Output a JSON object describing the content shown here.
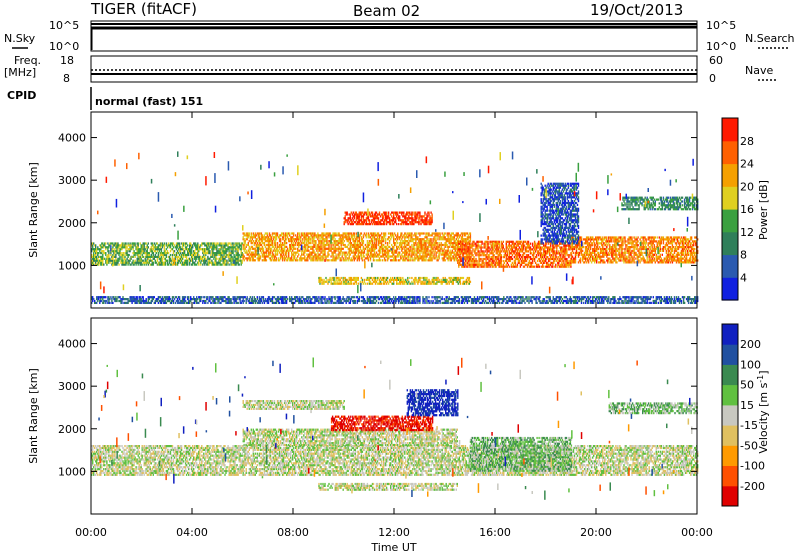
{
  "header": {
    "station": "TIGER (fitACF)",
    "beam": "Beam 02",
    "date": "19/Oct/2013"
  },
  "panels": {
    "nsky": {
      "label": "N.Sky",
      "ticks_left": [
        "10^5",
        "10^0"
      ],
      "right_label": "N.Search",
      "ticks_right": [
        "10^5",
        "10^0"
      ]
    },
    "freq": {
      "label": "Freq.",
      "unit": "[MHz]",
      "ticks_left": [
        "18",
        "8"
      ],
      "right_label": "Nave",
      "ticks_right": [
        "60",
        "0"
      ]
    },
    "cpid": {
      "label": "CPID",
      "value": "normal (fast) 151"
    }
  },
  "chart_data": [
    {
      "type": "heatmap",
      "name": "power",
      "title": "",
      "xlabel": "Time UT",
      "ylabel": "Slant Range [km]",
      "x_ticks": [
        "00:00",
        "04:00",
        "08:00",
        "12:00",
        "16:00",
        "20:00",
        "00:00"
      ],
      "y_ticks": [
        1000,
        2000,
        3000,
        4000
      ],
      "ylim": [
        0,
        4600
      ],
      "xlim_hours": [
        0,
        24
      ],
      "colorbar": {
        "label": "Power [dB]",
        "ticks": [
          4,
          8,
          12,
          16,
          20,
          24,
          28
        ],
        "range": [
          0,
          32
        ],
        "colors": [
          "#1020e0",
          "#2a5ab0",
          "#2f7f5a",
          "#3aa040",
          "#e0d020",
          "#f5a000",
          "#ff6000",
          "#ff1a00"
        ]
      },
      "bands": [
        {
          "t0": 0.0,
          "t1": 6.0,
          "r0": 1000,
          "r1": 1500,
          "level": 0.45
        },
        {
          "t0": 6.0,
          "t1": 15.0,
          "r0": 1100,
          "r1": 1750,
          "level": 0.7
        },
        {
          "t0": 10.0,
          "t1": 13.5,
          "r0": 1950,
          "r1": 2250,
          "level": 0.9
        },
        {
          "t0": 14.5,
          "t1": 19.0,
          "r0": 950,
          "r1": 1550,
          "level": 0.8
        },
        {
          "t0": 19.0,
          "t1": 24.0,
          "r0": 1050,
          "r1": 1650,
          "level": 0.75
        },
        {
          "t0": 9.0,
          "t1": 15.0,
          "r0": 550,
          "r1": 700,
          "level": 0.6
        },
        {
          "t0": 21.0,
          "t1": 24.0,
          "r0": 2300,
          "r1": 2600,
          "level": 0.35
        },
        {
          "t0": 17.8,
          "t1": 19.3,
          "r0": 1500,
          "r1": 2900,
          "level": 0.15
        },
        {
          "t0": 0.0,
          "t1": 24.0,
          "r0": 100,
          "r1": 260,
          "level": 0.2
        }
      ]
    },
    {
      "type": "heatmap",
      "name": "velocity",
      "title": "",
      "xlabel": "Time UT",
      "ylabel": "Slant Range [km]",
      "x_ticks": [
        "00:00",
        "04:00",
        "08:00",
        "12:00",
        "16:00",
        "20:00",
        "00:00"
      ],
      "y_ticks": [
        1000,
        2000,
        3000,
        4000
      ],
      "ylim": [
        0,
        4600
      ],
      "xlim_hours": [
        0,
        24
      ],
      "colorbar": {
        "label": "Velocity [m s^-1]",
        "ticks": [
          -200,
          -100,
          -50,
          -15,
          15,
          50,
          100,
          200
        ],
        "colors": [
          "#e00000",
          "#ff5000",
          "#ff9a00",
          "#e0c060",
          "#c8c8c0",
          "#60c040",
          "#3a8a50",
          "#2050a0",
          "#1020c0"
        ]
      },
      "bands": [
        {
          "t0": 0.0,
          "t1": 24.0,
          "r0": 900,
          "r1": 1600,
          "level": 0.5
        },
        {
          "t0": 6.0,
          "t1": 14.5,
          "r0": 1600,
          "r1": 2000,
          "level": 0.5
        },
        {
          "t0": 9.5,
          "t1": 13.5,
          "r0": 1950,
          "r1": 2300,
          "level": 0.05
        },
        {
          "t0": 12.5,
          "t1": 14.5,
          "r0": 2300,
          "r1": 2900,
          "level": 0.95
        },
        {
          "t0": 15.0,
          "t1": 19.0,
          "r0": 1000,
          "r1": 1800,
          "level": 0.62
        },
        {
          "t0": 9.0,
          "t1": 14.5,
          "r0": 550,
          "r1": 700,
          "level": 0.5
        },
        {
          "t0": 6.0,
          "t1": 10.0,
          "r0": 2450,
          "r1": 2650,
          "level": 0.5
        },
        {
          "t0": 20.5,
          "t1": 24.0,
          "r0": 2350,
          "r1": 2600,
          "level": 0.6
        }
      ]
    }
  ]
}
